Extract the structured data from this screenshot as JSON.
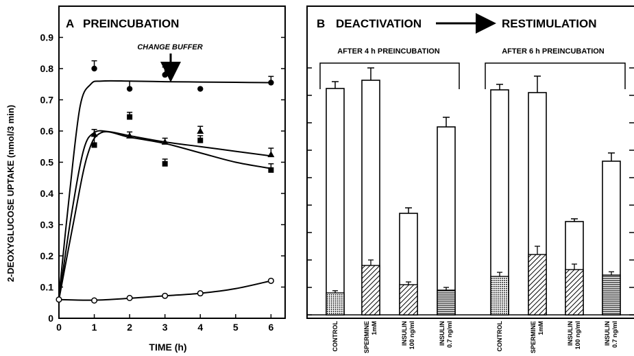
{
  "chart_data": [
    {
      "type": "line",
      "panel_letter": "A",
      "title": "PREINCUBATION",
      "xlabel": "TIME (h)",
      "ylabel": "2-DEOXYGLUCOSE UPTAKE (nmol/3 min)",
      "annotation": "CHANGE BUFFER",
      "xlim": [
        0,
        6.4
      ],
      "ylim": [
        0,
        1.0
      ],
      "xticks": [
        0,
        1,
        2,
        3,
        4,
        5,
        6
      ],
      "yticks": [
        0,
        0.1,
        0.2,
        0.3,
        0.4,
        0.5,
        0.6,
        0.7,
        0.8,
        0.9
      ],
      "ytick_labels": [
        "0",
        "0.1",
        "0.2",
        "0.3",
        "0.4",
        "0.5",
        "0.6",
        "0.7",
        "0.8",
        "0.9"
      ],
      "series": [
        {
          "marker": "filled-circle",
          "x": [
            1,
            2,
            3,
            4,
            6
          ],
          "y": [
            0.8,
            0.735,
            0.78,
            0.735,
            0.755
          ],
          "err": [
            0.025,
            0.025,
            0.025,
            0,
            0.02
          ],
          "curve_x": [
            0,
            0.3,
            0.6,
            0.9,
            1.2,
            2,
            3,
            4,
            5,
            6
          ],
          "curve_y": [
            0.07,
            0.4,
            0.68,
            0.75,
            0.76,
            0.76,
            0.758,
            0.757,
            0.756,
            0.755
          ]
        },
        {
          "marker": "filled-square",
          "x": [
            1,
            2,
            3,
            4,
            6
          ],
          "y": [
            0.555,
            0.645,
            0.495,
            0.57,
            0.475
          ],
          "err": [
            0.05,
            0.015,
            0.015,
            0.015,
            0.02
          ],
          "curve_x": [
            0,
            0.4,
            0.8,
            1.2,
            2,
            3,
            4,
            5,
            6
          ],
          "curve_y": [
            0.06,
            0.3,
            0.52,
            0.595,
            0.58,
            0.56,
            0.53,
            0.5,
            0.48
          ]
        },
        {
          "marker": "filled-triangle",
          "x": [
            1,
            2,
            3,
            4,
            6
          ],
          "y": [
            0.59,
            0.585,
            0.565,
            0.6,
            0.525
          ],
          "err": [
            0.015,
            0.012,
            0.012,
            0.015,
            0.02
          ],
          "curve_x": [
            0,
            0.35,
            0.7,
            1.0,
            1.4,
            2,
            3,
            4,
            5,
            6
          ],
          "curve_y": [
            0.06,
            0.33,
            0.54,
            0.595,
            0.598,
            0.585,
            0.565,
            0.55,
            0.535,
            0.52
          ]
        },
        {
          "marker": "open-circle",
          "x": [
            0,
            1,
            2,
            3,
            4,
            6
          ],
          "y": [
            0.06,
            0.057,
            0.065,
            0.072,
            0.08,
            0.12
          ],
          "err": [
            0,
            0,
            0,
            0,
            0,
            0
          ],
          "curve_x": [
            0,
            1,
            2,
            3,
            4,
            5,
            6
          ],
          "curve_y": [
            0.06,
            0.058,
            0.064,
            0.072,
            0.08,
            0.095,
            0.12
          ]
        }
      ]
    },
    {
      "type": "bar",
      "panel_letter": "B",
      "title_left": "DEACTIVATION",
      "title_right": "RESTIMULATION",
      "ylim": [
        0,
        1.0
      ],
      "groups": [
        {
          "label": "AFTER 4 h PREINCUBATION",
          "bars": [
            {
              "name": "CONTROL",
              "sub": "",
              "total": 0.825,
              "total_err": 0.025,
              "base": 0.08,
              "base_err": 0.008,
              "pattern": "crosshatch"
            },
            {
              "name": "SPERMINE",
              "sub": "1mM",
              "total": 0.855,
              "total_err": 0.045,
              "base": 0.18,
              "base_err": 0.02,
              "pattern": "diagonal"
            },
            {
              "name": "INSULIN",
              "sub": "100 ng/ml",
              "total": 0.37,
              "total_err": 0.02,
              "base": 0.11,
              "base_err": 0.01,
              "pattern": "diagonal"
            },
            {
              "name": "INSULIN",
              "sub": "0.7 ng/ml",
              "total": 0.685,
              "total_err": 0.035,
              "base": 0.09,
              "base_err": 0.01,
              "pattern": "horizontal"
            }
          ]
        },
        {
          "label": "AFTER 6 h PREINCUBATION",
          "bars": [
            {
              "name": "CONTROL",
              "sub": "",
              "total": 0.82,
              "total_err": 0.02,
              "base": 0.14,
              "base_err": 0.015,
              "pattern": "crosshatch"
            },
            {
              "name": "SPERMINE",
              "sub": "1mM",
              "total": 0.81,
              "total_err": 0.06,
              "base": 0.22,
              "base_err": 0.03,
              "pattern": "diagonal"
            },
            {
              "name": "INSULIN",
              "sub": "100 ng/ml",
              "total": 0.34,
              "total_err": 0.01,
              "base": 0.165,
              "base_err": 0.02,
              "pattern": "diagonal"
            },
            {
              "name": "INSULIN",
              "sub": "0.7 ng/ml",
              "total": 0.56,
              "total_err": 0.03,
              "base": 0.145,
              "base_err": 0.012,
              "pattern": "horizontal"
            }
          ]
        }
      ]
    }
  ]
}
